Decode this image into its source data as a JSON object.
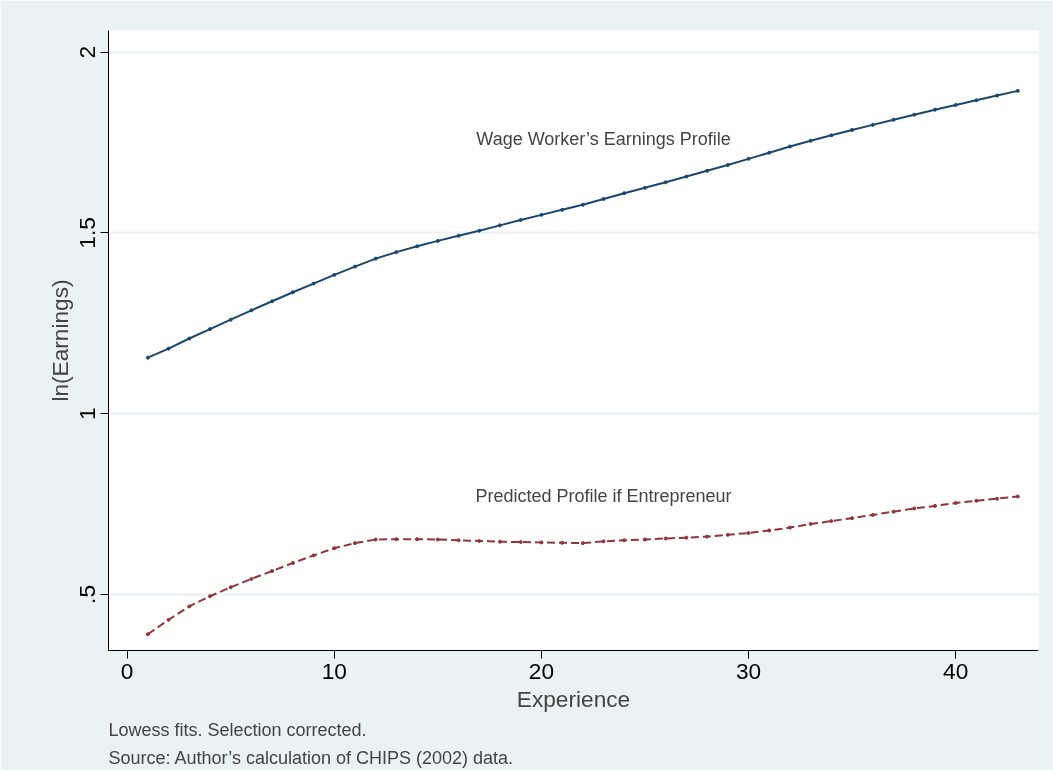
{
  "chart_data": {
    "type": "line",
    "xlabel": "Experience",
    "ylabel": "ln(Earnings)",
    "x": [
      1,
      2,
      3,
      4,
      5,
      6,
      7,
      8,
      9,
      10,
      11,
      12,
      13,
      14,
      15,
      16,
      17,
      18,
      19,
      20,
      21,
      22,
      23,
      24,
      25,
      26,
      27,
      28,
      29,
      30,
      31,
      32,
      33,
      34,
      35,
      36,
      37,
      38,
      39,
      40,
      41,
      42,
      43
    ],
    "series": [
      {
        "name": "Wage Worker’s Earnings Profile",
        "color": "#1a476f",
        "line_style": "solid",
        "values": [
          1.155,
          1.18,
          1.208,
          1.234,
          1.26,
          1.286,
          1.311,
          1.336,
          1.36,
          1.384,
          1.407,
          1.429,
          1.447,
          1.463,
          1.478,
          1.492,
          1.506,
          1.521,
          1.536,
          1.55,
          1.564,
          1.578,
          1.594,
          1.61,
          1.625,
          1.64,
          1.656,
          1.672,
          1.688,
          1.705,
          1.722,
          1.739,
          1.755,
          1.77,
          1.785,
          1.799,
          1.813,
          1.827,
          1.841,
          1.854,
          1.867,
          1.88,
          1.893
        ]
      },
      {
        "name": "Predicted Profile if Entrepreneur",
        "color": "#90353b",
        "line_style": "dashed",
        "values": [
          0.39,
          0.43,
          0.467,
          0.495,
          0.52,
          0.543,
          0.565,
          0.587,
          0.608,
          0.628,
          0.642,
          0.652,
          0.653,
          0.653,
          0.652,
          0.65,
          0.648,
          0.646,
          0.645,
          0.644,
          0.643,
          0.642,
          0.647,
          0.65,
          0.652,
          0.655,
          0.657,
          0.66,
          0.665,
          0.67,
          0.677,
          0.685,
          0.695,
          0.703,
          0.711,
          0.72,
          0.729,
          0.738,
          0.745,
          0.753,
          0.759,
          0.765,
          0.771
        ]
      }
    ],
    "xlim": [
      -0.9,
      44
    ],
    "xticks": [
      0,
      10,
      20,
      30,
      40
    ],
    "ylim": [
      0.345,
      2.06
    ],
    "yticks": [
      {
        "value": 0.5,
        "label": ".5"
      },
      1,
      1.5,
      2
    ],
    "grid": "y",
    "marker": "circle",
    "annotations": [
      "Lowess fits. Selection corrected.",
      "Source: Author’s calculation of CHIPS (2002) data."
    ]
  }
}
